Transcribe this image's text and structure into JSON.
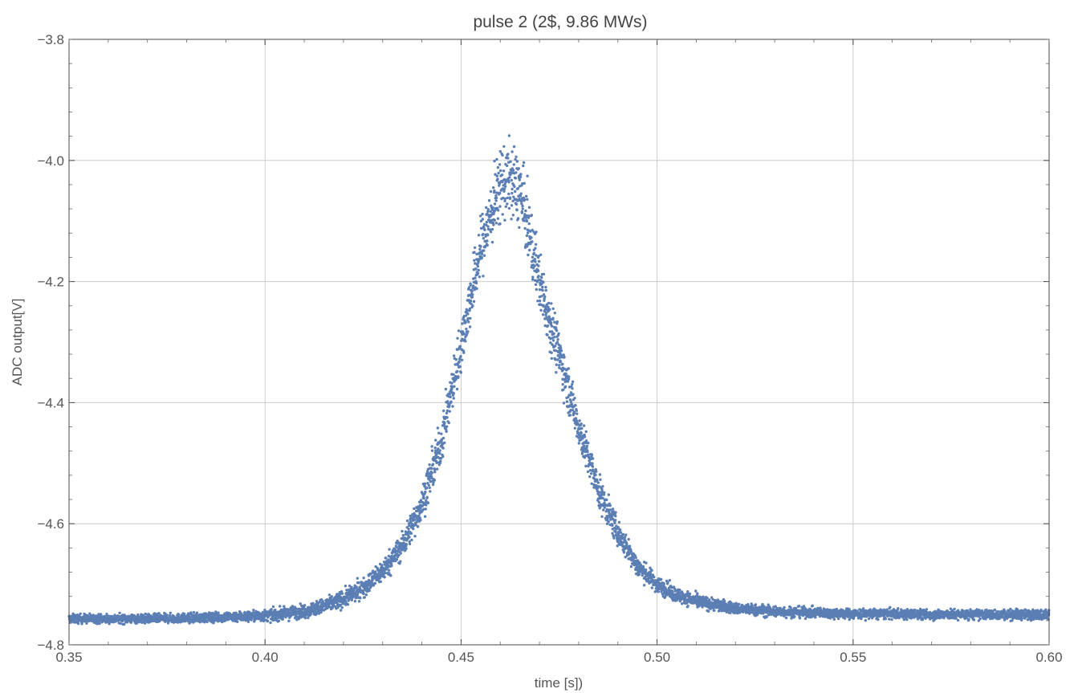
{
  "chart_data": {
    "type": "scatter",
    "title": "pulse 2 (2$, 9.86 MWs)",
    "xlabel": "time [s])",
    "ylabel": "ADC output[V]",
    "xlim": [
      0.35,
      0.6
    ],
    "ylim": [
      -4.8,
      -3.8
    ],
    "grid": true,
    "x_ticks": [
      0.35,
      0.4,
      0.45,
      0.5,
      0.55,
      0.6
    ],
    "x_tick_labels": [
      "0.35",
      "0.40",
      "0.45",
      "0.50",
      "0.55",
      "0.60"
    ],
    "y_ticks": [
      -4.8,
      -4.6,
      -4.4,
      -4.2,
      -4.0,
      -3.8
    ],
    "y_tick_labels": [
      "−4.8",
      "−4.6",
      "−4.4",
      "−4.2",
      "−4.0",
      "−3.8"
    ],
    "series": [
      {
        "color": "#5b7fb4",
        "x": [
          0.35,
          0.36,
          0.37,
          0.38,
          0.39,
          0.4,
          0.405,
          0.41,
          0.415,
          0.42,
          0.425,
          0.43,
          0.435,
          0.44,
          0.445,
          0.45,
          0.455,
          0.46,
          0.462,
          0.465,
          0.47,
          0.475,
          0.48,
          0.485,
          0.49,
          0.495,
          0.5,
          0.505,
          0.51,
          0.52,
          0.53,
          0.54,
          0.55,
          0.56,
          0.57,
          0.58,
          0.59,
          0.6
        ],
        "y": [
          -4.757,
          -4.757,
          -4.757,
          -4.756,
          -4.754,
          -4.752,
          -4.749,
          -4.744,
          -4.736,
          -4.724,
          -4.706,
          -4.678,
          -4.637,
          -4.568,
          -4.464,
          -4.305,
          -4.146,
          -4.04,
          -4.03,
          -4.05,
          -4.2,
          -4.32,
          -4.44,
          -4.545,
          -4.615,
          -4.67,
          -4.7,
          -4.718,
          -4.728,
          -4.74,
          -4.745,
          -4.747,
          -4.749,
          -4.749,
          -4.75,
          -4.75,
          -4.75,
          -4.75
        ],
        "spread": [
          0.008,
          0.008,
          0.008,
          0.008,
          0.009,
          0.01,
          0.011,
          0.012,
          0.013,
          0.015,
          0.017,
          0.02,
          0.024,
          0.03,
          0.038,
          0.045,
          0.055,
          0.065,
          0.065,
          0.065,
          0.055,
          0.045,
          0.035,
          0.03,
          0.024,
          0.018,
          0.015,
          0.013,
          0.012,
          0.01,
          0.01,
          0.009,
          0.009,
          0.009,
          0.009,
          0.009,
          0.009,
          0.009
        ]
      }
    ]
  }
}
